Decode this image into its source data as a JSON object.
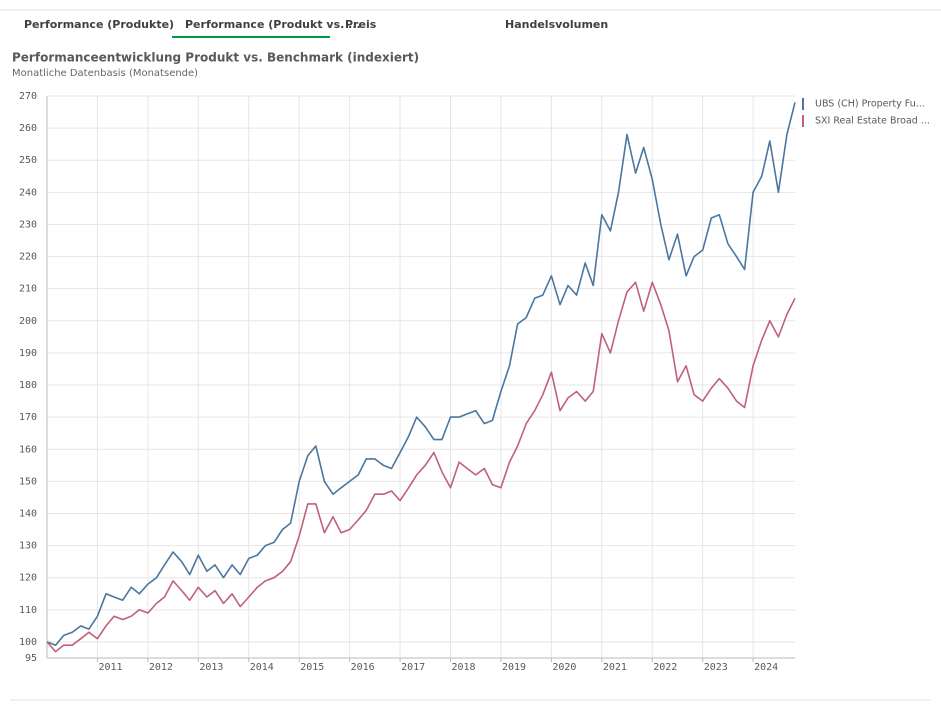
{
  "tabs": [
    "Performance (Produkte)",
    "Performance (Produkt vs. ...",
    "Preis",
    "Handelsvolumen"
  ],
  "chart_data": {
    "type": "line",
    "title": "Performanceentwicklung Produkt vs. Benchmark (indexiert)",
    "subtitle": "Monatliche Datenbasis (Monatsende)",
    "x": [
      2010.0,
      2010.17,
      2010.33,
      2010.5,
      2010.67,
      2010.83,
      2011.0,
      2011.17,
      2011.33,
      2011.5,
      2011.67,
      2011.83,
      2012.0,
      2012.17,
      2012.33,
      2012.5,
      2012.67,
      2012.83,
      2013.0,
      2013.17,
      2013.33,
      2013.5,
      2013.67,
      2013.83,
      2014.0,
      2014.17,
      2014.33,
      2014.5,
      2014.67,
      2014.83,
      2015.0,
      2015.17,
      2015.33,
      2015.5,
      2015.67,
      2015.83,
      2016.0,
      2016.17,
      2016.33,
      2016.5,
      2016.67,
      2016.83,
      2017.0,
      2017.17,
      2017.33,
      2017.5,
      2017.67,
      2017.83,
      2018.0,
      2018.17,
      2018.33,
      2018.5,
      2018.67,
      2018.83,
      2019.0,
      2019.17,
      2019.33,
      2019.5,
      2019.67,
      2019.83,
      2020.0,
      2020.17,
      2020.33,
      2020.5,
      2020.67,
      2020.83,
      2021.0,
      2021.17,
      2021.33,
      2021.5,
      2021.67,
      2021.83,
      2022.0,
      2022.17,
      2022.33,
      2022.5,
      2022.67,
      2022.83,
      2023.0,
      2023.17,
      2023.33,
      2023.5,
      2023.67,
      2023.83,
      2024.0,
      2024.17,
      2024.33,
      2024.5,
      2024.67,
      2024.83
    ],
    "series": [
      {
        "name": "UBS (CH) Property Fu...",
        "color": "#4a76a0",
        "values": [
          100,
          99,
          102,
          103,
          105,
          104,
          108,
          115,
          114,
          113,
          117,
          115,
          118,
          120,
          124,
          128,
          125,
          121,
          127,
          122,
          124,
          120,
          124,
          121,
          126,
          127,
          130,
          131,
          135,
          137,
          150,
          158,
          161,
          150,
          146,
          148,
          150,
          152,
          157,
          157,
          155,
          154,
          159,
          164,
          170,
          167,
          163,
          163,
          170,
          170,
          171,
          172,
          168,
          169,
          178,
          186,
          199,
          201,
          207,
          208,
          214,
          205,
          211,
          208,
          218,
          211,
          233,
          228,
          240,
          258,
          246,
          254,
          244,
          230,
          219,
          227,
          214,
          220,
          222,
          232,
          233,
          224,
          220,
          216,
          240,
          245,
          256,
          240,
          258,
          268
        ]
      },
      {
        "name": "SXI Real Estate Broad ...",
        "color": "#c0607a",
        "values": [
          100,
          97,
          99,
          99,
          101,
          103,
          101,
          105,
          108,
          107,
          108,
          110,
          109,
          112,
          114,
          119,
          116,
          113,
          117,
          114,
          116,
          112,
          115,
          111,
          114,
          117,
          119,
          120,
          122,
          125,
          133,
          143,
          143,
          134,
          139,
          134,
          135,
          138,
          141,
          146,
          146,
          147,
          144,
          148,
          152,
          155,
          159,
          153,
          148,
          156,
          154,
          152,
          154,
          149,
          148,
          156,
          161,
          168,
          172,
          177,
          184,
          172,
          176,
          178,
          175,
          178,
          196,
          190,
          200,
          209,
          212,
          203,
          212,
          205,
          197,
          181,
          186,
          177,
          175,
          179,
          182,
          179,
          175,
          173,
          186,
          194,
          200,
          195,
          202,
          207
        ]
      }
    ],
    "xlim": [
      2010,
      2024.83
    ],
    "xticks": [
      2011,
      2012,
      2013,
      2014,
      2015,
      2016,
      2017,
      2018,
      2019,
      2020,
      2021,
      2022,
      2023,
      2024
    ],
    "ylim": [
      95,
      270
    ],
    "yticks": [
      95,
      100,
      110,
      120,
      130,
      140,
      150,
      160,
      170,
      180,
      190,
      200,
      210,
      220,
      230,
      240,
      250,
      260,
      270
    ],
    "grid": true,
    "legend": "right"
  }
}
